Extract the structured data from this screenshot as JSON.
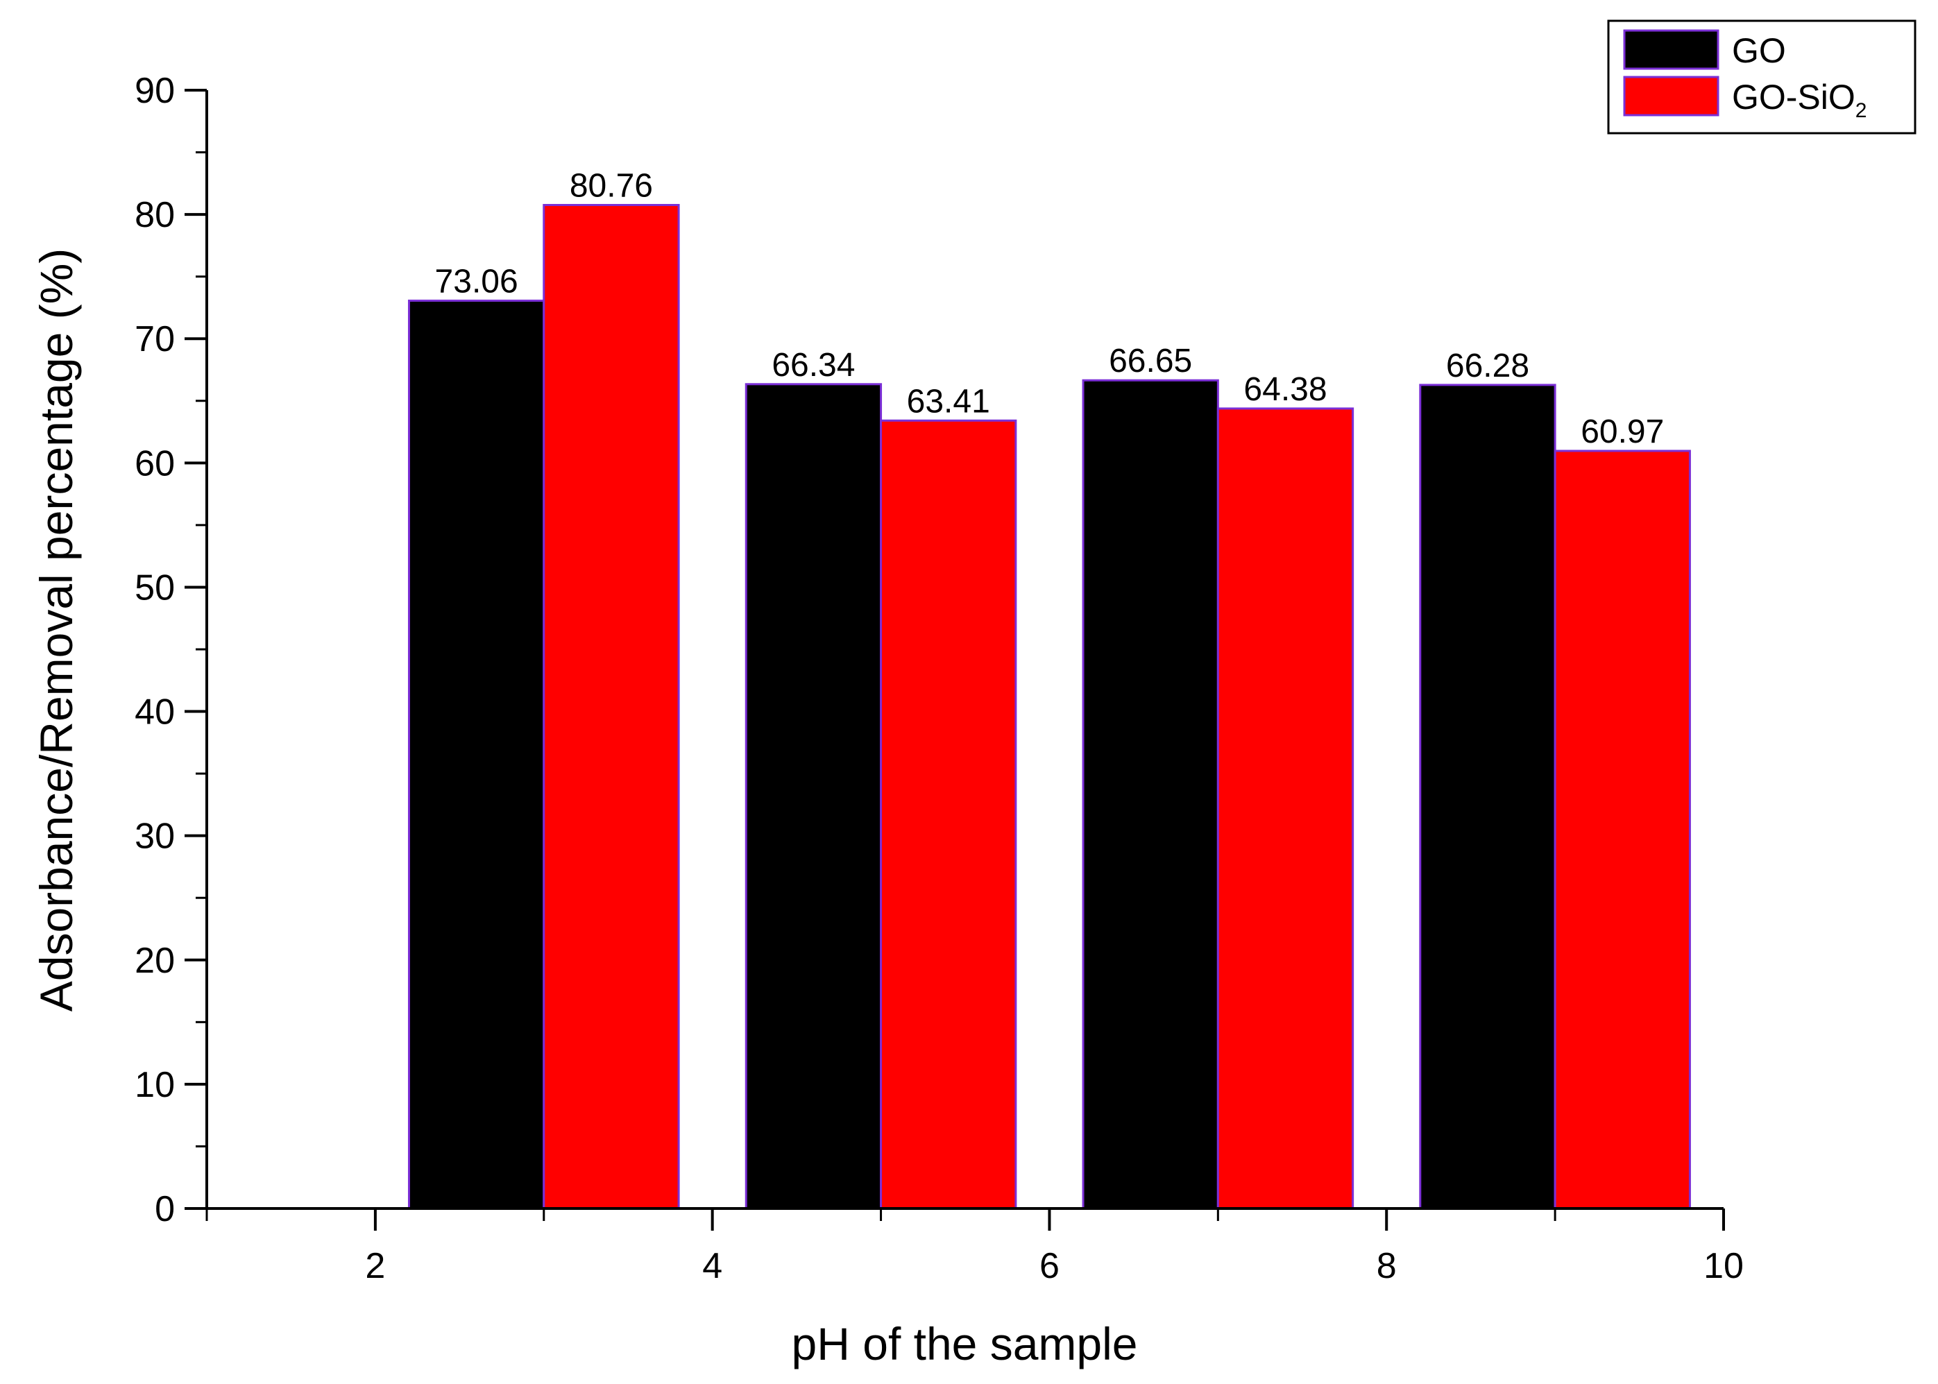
{
  "chart_data": {
    "type": "bar",
    "title": "",
    "xlabel": "pH of the sample",
    "ylabel": "Adsorbance/Removal percentage (%)",
    "xlim": [
      1,
      10
    ],
    "ylim": [
      0,
      90
    ],
    "x_ticks": [
      2,
      4,
      6,
      8,
      10
    ],
    "y_ticks": [
      0,
      10,
      20,
      30,
      40,
      50,
      60,
      70,
      80,
      90
    ],
    "categories": [
      3,
      5,
      7,
      9
    ],
    "grid": false,
    "legend_position": "top-right",
    "series": [
      {
        "name": "GO",
        "color": "#000000",
        "values": [
          73.06,
          66.34,
          66.65,
          66.28
        ]
      },
      {
        "name": "GO-SiO2",
        "name_base": "GO-SiO",
        "name_sub": "2",
        "color": "#ff0000",
        "values": [
          80.76,
          63.41,
          64.38,
          60.97
        ]
      }
    ],
    "data_labels": [
      [
        "73.06",
        "66.34",
        "66.65",
        "66.28"
      ],
      [
        "80.76",
        "63.41",
        "64.38",
        "60.97"
      ]
    ],
    "bar_edge_color": "#7b2fd6"
  }
}
